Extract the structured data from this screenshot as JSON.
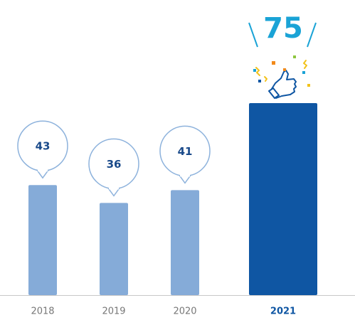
{
  "chart_data": {
    "type": "bar",
    "categories": [
      "2018",
      "2019",
      "2020",
      "2021"
    ],
    "values": [
      43,
      36,
      41,
      75
    ],
    "color": "#85abd8",
    "highlight": "2021",
    "highlight_color": "#0f56a3"
  }
}
